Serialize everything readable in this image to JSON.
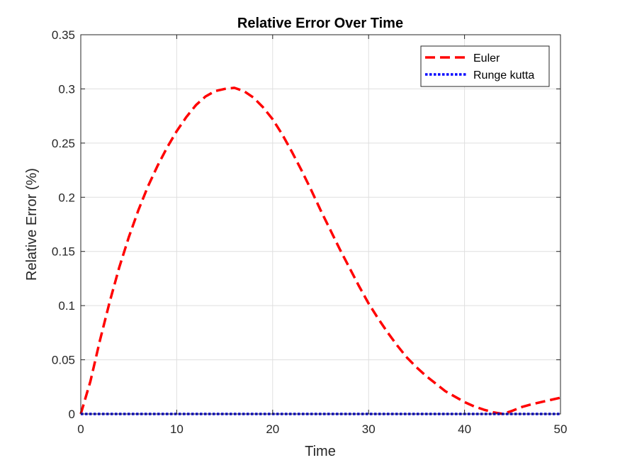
{
  "chart_data": {
    "type": "line",
    "title": "Relative Error Over Time",
    "xlabel": "Time",
    "ylabel": "Relative Error (%)",
    "xlim": [
      0,
      50
    ],
    "ylim": [
      0,
      0.35
    ],
    "xticks": [
      "0",
      "10",
      "20",
      "30",
      "40",
      "50"
    ],
    "yticks": [
      "0",
      "0.05",
      "0.1",
      "0.15",
      "0.2",
      "0.25",
      "0.3",
      "0.35"
    ],
    "grid": true,
    "legend_position": "top-right",
    "series": [
      {
        "name": "Euler",
        "color": "#ff0000",
        "style": "dashed",
        "x": [
          0,
          1,
          2,
          3,
          4,
          5,
          6,
          7,
          8,
          9,
          10,
          11,
          12,
          13,
          14,
          15,
          16,
          17,
          18,
          19,
          20,
          21,
          22,
          23,
          24,
          25,
          26,
          27,
          28,
          29,
          30,
          31,
          32,
          33,
          34,
          35,
          36,
          37,
          38,
          39,
          40,
          41,
          42,
          43,
          44,
          45,
          46,
          47,
          48,
          49,
          50
        ],
        "y": [
          0,
          0.03,
          0.068,
          0.103,
          0.135,
          0.163,
          0.188,
          0.21,
          0.229,
          0.246,
          0.261,
          0.274,
          0.285,
          0.293,
          0.298,
          0.3,
          0.301,
          0.298,
          0.292,
          0.283,
          0.272,
          0.258,
          0.242,
          0.225,
          0.207,
          0.188,
          0.17,
          0.152,
          0.135,
          0.118,
          0.102,
          0.088,
          0.075,
          0.063,
          0.052,
          0.043,
          0.035,
          0.028,
          0.021,
          0.016,
          0.011,
          0.007,
          0.004,
          0.0015,
          0.0,
          0.003,
          0.0065,
          0.009,
          0.011,
          0.013,
          0.015
        ]
      },
      {
        "name": "Runge kutta",
        "color": "#0000ff",
        "style": "dotted",
        "x": [
          0,
          5,
          10,
          15,
          20,
          25,
          30,
          35,
          40,
          45,
          50
        ],
        "y": [
          0,
          0,
          0,
          0,
          0,
          0,
          0,
          0,
          0,
          0,
          0
        ]
      }
    ]
  }
}
